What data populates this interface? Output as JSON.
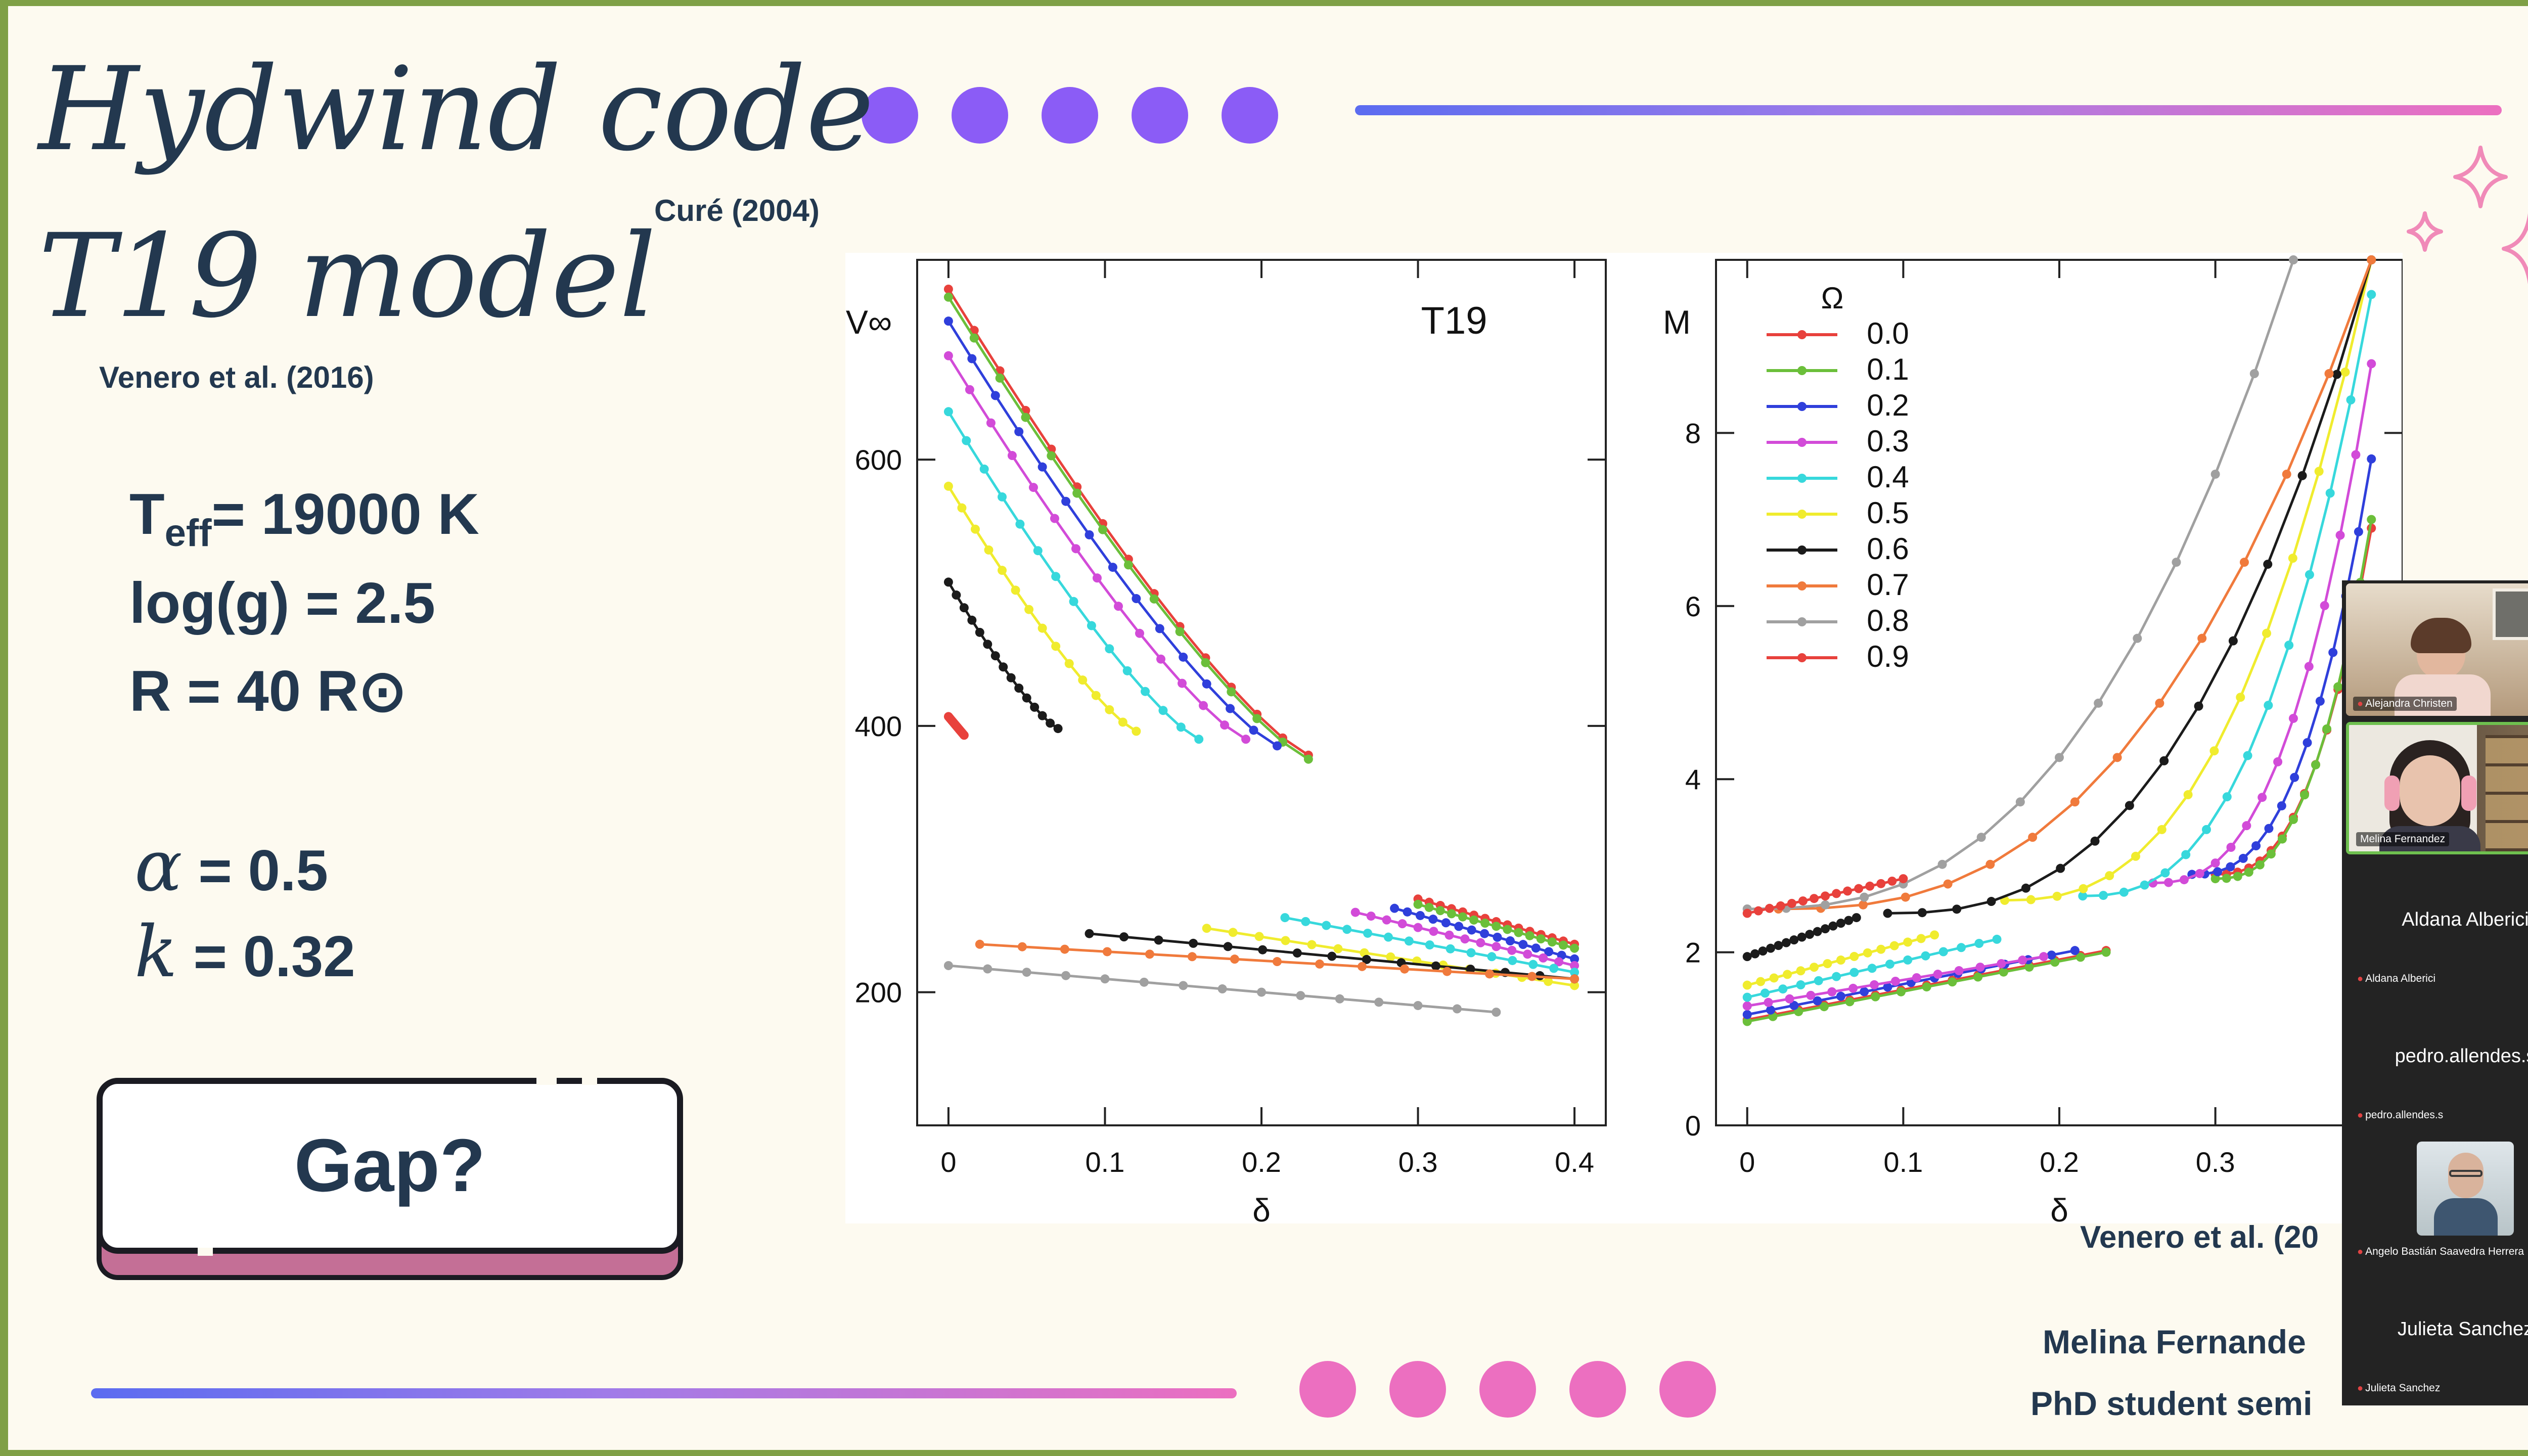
{
  "slide": {
    "title_line1": "Hydwind code",
    "title_line2": "T19 model",
    "cite_cure": "Curé (2004)",
    "cite_venero_left": "Venero et al. (2016)",
    "params": {
      "teff_pre": "T",
      "teff_sub": "eff",
      "teff_post": "= 19000 K",
      "logg": "log(g) = 2.5",
      "radius": "R = 40 R⊙",
      "alpha_symbol": "α",
      "alpha_value": "= 0.5",
      "k_symbol": "k",
      "k_value": "= 0.32"
    },
    "gap_button": "Gap?",
    "cite_venero_right": "Venero et al. (20",
    "footer_line1": "Melina Fernande",
    "footer_line2": "PhD student semi",
    "colors": {
      "navy": "#23384f",
      "purple": "#8b5cf6",
      "pink": "#ec6fc0",
      "blue": "#5b6cf0"
    }
  },
  "chart_data": [
    {
      "type": "line",
      "title": "T19",
      "xlabel": "δ",
      "ylabel": "V∞",
      "xlim": [
        -0.02,
        0.42
      ],
      "ylim": [
        100,
        750
      ],
      "xticks": [
        0,
        0.1,
        0.2,
        0.3,
        0.4
      ],
      "xtick_labels": [
        "0",
        "0.1",
        "0.2",
        "0.3",
        "0.4"
      ],
      "yticks": [
        200,
        400,
        600
      ],
      "ytick_labels": [
        "200",
        "400",
        "600"
      ],
      "grid": false,
      "series": [
        {
          "name": "0.0",
          "color": "#e8413c",
          "segments": [
            {
              "x": [
                0,
                0.23
              ],
              "y": [
                728,
                378
              ]
            },
            {
              "x": [
                0.3,
                0.4
              ],
              "y": [
                270,
                236
              ]
            }
          ]
        },
        {
          "name": "0.1",
          "color": "#6bbf3a",
          "segments": [
            {
              "x": [
                0,
                0.23
              ],
              "y": [
                722,
                375
              ]
            },
            {
              "x": [
                0.3,
                0.4
              ],
              "y": [
                266,
                233
              ]
            }
          ]
        },
        {
          "name": "0.2",
          "color": "#2f3fdb",
          "segments": [
            {
              "x": [
                0,
                0.21
              ],
              "y": [
                704,
                385
              ]
            },
            {
              "x": [
                0.285,
                0.4
              ],
              "y": [
                263,
                225
              ]
            }
          ]
        },
        {
          "name": "0.3",
          "color": "#d24bd8",
          "segments": [
            {
              "x": [
                0,
                0.19
              ],
              "y": [
                678,
                390
              ]
            },
            {
              "x": [
                0.26,
                0.4
              ],
              "y": [
                260,
                220
              ]
            }
          ]
        },
        {
          "name": "0.4",
          "color": "#37d8dc",
          "segments": [
            {
              "x": [
                0,
                0.16
              ],
              "y": [
                636,
                390
              ]
            },
            {
              "x": [
                0.215,
                0.4
              ],
              "y": [
                256,
                215
              ]
            }
          ]
        },
        {
          "name": "0.5",
          "color": "#f0ec2e",
          "segments": [
            {
              "x": [
                0,
                0.12
              ],
              "y": [
                580,
                396
              ]
            },
            {
              "x": [
                0.165,
                0.4
              ],
              "y": [
                248,
                205
              ]
            }
          ]
        },
        {
          "name": "0.6",
          "color": "#1b1b1b",
          "segments": [
            {
              "x": [
                0,
                0.07
              ],
              "y": [
                508,
                398
              ]
            },
            {
              "x": [
                0.09,
                0.4
              ],
              "y": [
                244,
                210
              ]
            }
          ]
        },
        {
          "name": "0.7",
          "color": "#f07a3c",
          "segments": [
            {
              "x": [
                0.02,
                0.4
              ],
              "y": [
                236,
                210
              ]
            }
          ]
        },
        {
          "name": "0.8",
          "color": "#a0a0a0",
          "segments": [
            {
              "x": [
                0,
                0.35
              ],
              "y": [
                220,
                185
              ]
            }
          ]
        },
        {
          "name": "0.9",
          "color": "#e8413c",
          "segments": [
            {
              "x": [
                0,
                0.01
              ],
              "y": [
                407,
                393
              ]
            }
          ]
        }
      ]
    },
    {
      "type": "line",
      "xlabel": "δ",
      "ylabel": "M",
      "xlim": [
        -0.02,
        0.42
      ],
      "ylim": [
        0,
        10
      ],
      "xticks": [
        0,
        0.1,
        0.2,
        0.3
      ],
      "xtick_labels": [
        "0",
        "0.1",
        "0.2",
        "0.3"
      ],
      "yticks": [
        0,
        2,
        4,
        6,
        8
      ],
      "ytick_labels": [
        "0",
        "2",
        "4",
        "6",
        "8"
      ],
      "legend_title": "Ω",
      "legend_position": "top-left",
      "grid": false,
      "series": [
        {
          "name": "0.0",
          "color": "#e8413c",
          "segments": [
            {
              "x": [
                0,
                0.23
              ],
              "y": [
                1.22,
                2.02
              ]
            },
            {
              "x": [
                0.3,
                0.4
              ],
              "y": [
                2.9,
                6.9
              ]
            }
          ]
        },
        {
          "name": "0.1",
          "color": "#6bbf3a",
          "segments": [
            {
              "x": [
                0,
                0.23
              ],
              "y": [
                1.2,
                2.0
              ]
            },
            {
              "x": [
                0.3,
                0.4
              ],
              "y": [
                2.85,
                7.0
              ]
            }
          ]
        },
        {
          "name": "0.2",
          "color": "#2f3fdb",
          "segments": [
            {
              "x": [
                0,
                0.21
              ],
              "y": [
                1.28,
                2.02
              ]
            },
            {
              "x": [
                0.285,
                0.4
              ],
              "y": [
                2.9,
                7.7
              ]
            }
          ]
        },
        {
          "name": "0.3",
          "color": "#d24bd8",
          "segments": [
            {
              "x": [
                0,
                0.19
              ],
              "y": [
                1.38,
                1.95
              ]
            },
            {
              "x": [
                0.26,
                0.4
              ],
              "y": [
                2.8,
                8.8
              ]
            }
          ]
        },
        {
          "name": "0.4",
          "color": "#37d8dc",
          "segments": [
            {
              "x": [
                0,
                0.16
              ],
              "y": [
                1.48,
                2.15
              ]
            },
            {
              "x": [
                0.215,
                0.4
              ],
              "y": [
                2.65,
                9.6
              ]
            }
          ]
        },
        {
          "name": "0.5",
          "color": "#f0ec2e",
          "segments": [
            {
              "x": [
                0,
                0.12
              ],
              "y": [
                1.62,
                2.2
              ]
            },
            {
              "x": [
                0.165,
                0.4
              ],
              "y": [
                2.6,
                10
              ]
            }
          ]
        },
        {
          "name": "0.6",
          "color": "#1b1b1b",
          "segments": [
            {
              "x": [
                0,
                0.07
              ],
              "y": [
                1.95,
                2.4
              ]
            },
            {
              "x": [
                0.09,
                0.4
              ],
              "y": [
                2.45,
                10
              ]
            }
          ]
        },
        {
          "name": "0.7",
          "color": "#f07a3c",
          "segments": [
            {
              "x": [
                0.02,
                0.4
              ],
              "y": [
                2.5,
                10
              ]
            }
          ]
        },
        {
          "name": "0.8",
          "color": "#a0a0a0",
          "segments": [
            {
              "x": [
                0,
                0.35
              ],
              "y": [
                2.5,
                10
              ]
            }
          ]
        },
        {
          "name": "0.9",
          "color": "#e8413c",
          "segments": [
            {
              "x": [
                0,
                0.1
              ],
              "y": [
                2.45,
                2.85
              ]
            }
          ]
        }
      ]
    }
  ],
  "participants": [
    {
      "name": "Alejandra Christen",
      "type": "video"
    },
    {
      "name": "Melina Fernandez",
      "type": "video",
      "active": true
    },
    {
      "name": "Aldana Alberici",
      "type": "name"
    },
    {
      "name": "pedro.allendes.s",
      "type": "name"
    },
    {
      "name": "Angelo Bastián Saavedra Herrera",
      "type": "video"
    },
    {
      "name": "Julieta Sanchez",
      "type": "name"
    }
  ]
}
